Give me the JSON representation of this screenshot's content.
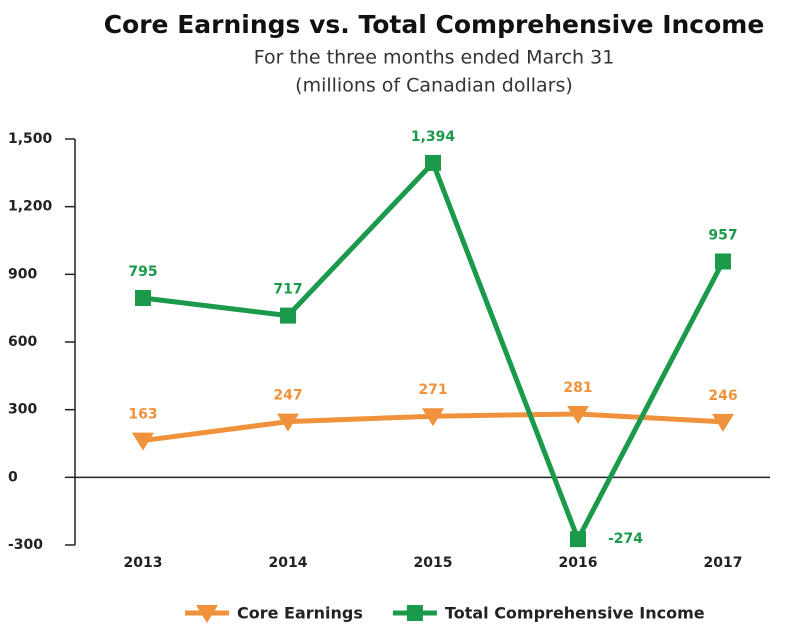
{
  "chart_data": {
    "type": "line",
    "title": "Core Earnings vs. Total Comprehensive Income",
    "subtitle": [
      "For the three months ended March 31",
      "(millions of Canadian dollars)"
    ],
    "categories": [
      "2013",
      "2014",
      "2015",
      "2016",
      "2017"
    ],
    "series": [
      {
        "name": "Core Earnings",
        "color": "#f0923b",
        "marker": "triangle-down",
        "values": [
          163,
          247,
          271,
          281,
          246
        ]
      },
      {
        "name": "Total Comprehensive Income",
        "color": "#1a9a4a",
        "marker": "square",
        "values": [
          795,
          717,
          1394,
          -274,
          957
        ],
        "value_labels": [
          "795",
          "717",
          "1,394",
          "-274",
          "957"
        ]
      }
    ],
    "ylim": [
      -300,
      1500
    ],
    "yticks": [
      -300,
      0,
      300,
      600,
      900,
      {
        "value": 1200,
        "label": "1,200"
      },
      {
        "value": 1500,
        "label": "1,500"
      }
    ],
    "legend": "bottom"
  }
}
